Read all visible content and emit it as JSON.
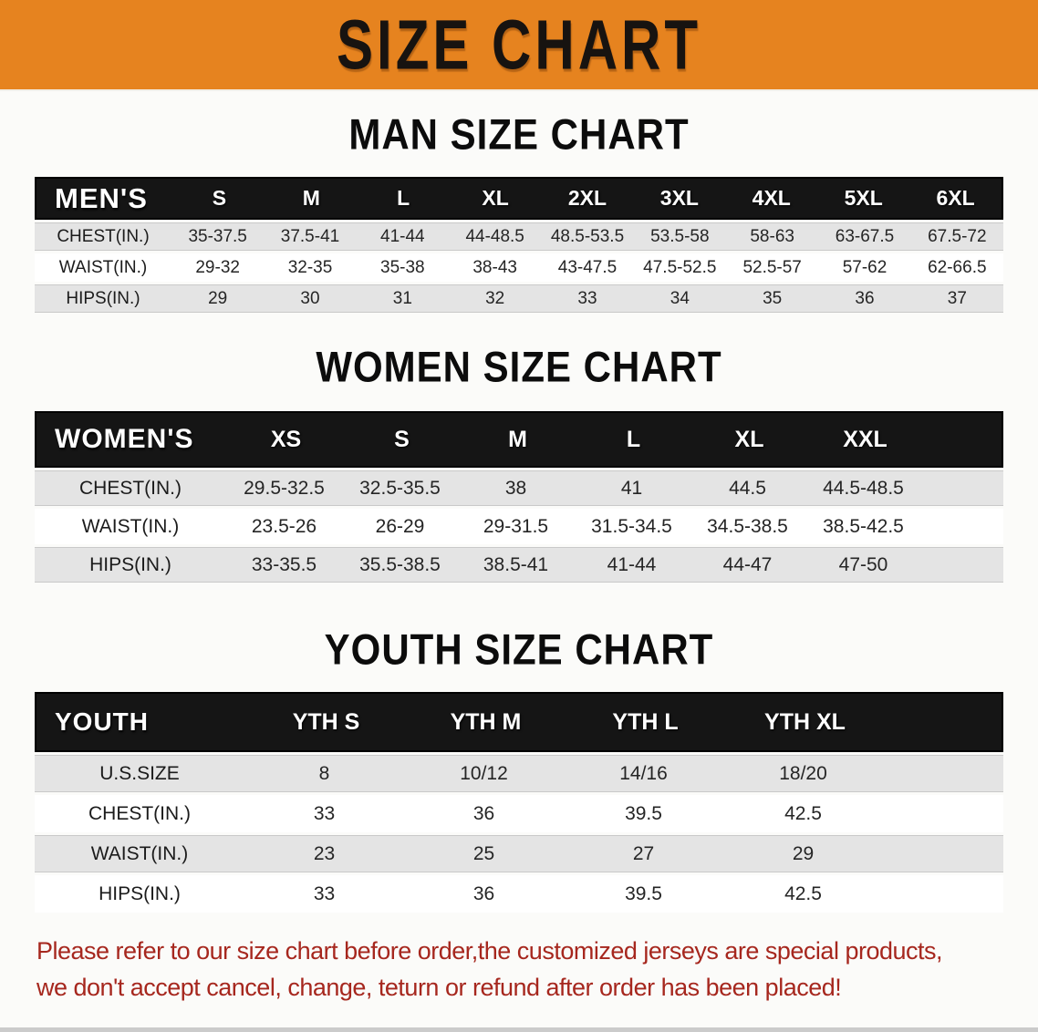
{
  "banner": {
    "title": "SIZE CHART"
  },
  "colors": {
    "banner_bg": "#e6831f",
    "table_header_bar": "#151515",
    "row_gray": "#e4e4e4",
    "disclaimer_red": "#a6271e",
    "bottom_strip_gray": "#cbcbcb"
  },
  "sections": {
    "men": {
      "heading": "MAN SIZE CHART",
      "table": {
        "group_label": "MEN'S",
        "columns": [
          "S",
          "M",
          "L",
          "XL",
          "2XL",
          "3XL",
          "4XL",
          "5XL",
          "6XL"
        ],
        "rows": [
          {
            "label": "CHEST(IN.)",
            "values": [
              "35-37.5",
              "37.5-41",
              "41-44",
              "44-48.5",
              "48.5-53.5",
              "53.5-58",
              "58-63",
              "63-67.5",
              "67.5-72"
            ]
          },
          {
            "label": "WAIST(IN.)",
            "values": [
              "29-32",
              "32-35",
              "35-38",
              "38-43",
              "43-47.5",
              "47.5-52.5",
              "52.5-57",
              "57-62",
              "62-66.5"
            ]
          },
          {
            "label": "HIPS(IN.)",
            "values": [
              "29",
              "30",
              "31",
              "32",
              "33",
              "34",
              "35",
              "36",
              "37"
            ]
          }
        ]
      }
    },
    "women": {
      "heading": "WOMEN SIZE CHART",
      "table": {
        "group_label": "WOMEN'S",
        "columns": [
          "XS",
          "S",
          "M",
          "L",
          "XL",
          "XXL"
        ],
        "rows": [
          {
            "label": "CHEST(IN.)",
            "values": [
              "29.5-32.5",
              "32.5-35.5",
              "38",
              "41",
              "44.5",
              "44.5-48.5"
            ]
          },
          {
            "label": "WAIST(IN.)",
            "values": [
              "23.5-26",
              "26-29",
              "29-31.5",
              "31.5-34.5",
              "34.5-38.5",
              "38.5-42.5"
            ]
          },
          {
            "label": "HIPS(IN.)",
            "values": [
              "33-35.5",
              "35.5-38.5",
              "38.5-41",
              "41-44",
              "44-47",
              "47-50"
            ]
          }
        ]
      }
    },
    "youth": {
      "heading": "YOUTH SIZE CHART",
      "table": {
        "group_label": "YOUTH",
        "columns": [
          "YTH S",
          "YTH M",
          "YTH L",
          "YTH XL"
        ],
        "rows": [
          {
            "label": "U.S.SIZE",
            "values": [
              "8",
              "10/12",
              "14/16",
              "18/20"
            ]
          },
          {
            "label": "CHEST(IN.)",
            "values": [
              "33",
              "36",
              "39.5",
              "42.5"
            ]
          },
          {
            "label": "WAIST(IN.)",
            "values": [
              "23",
              "25",
              "27",
              "29"
            ]
          },
          {
            "label": "HIPS(IN.)",
            "values": [
              "33",
              "36",
              "39.5",
              "42.5"
            ]
          }
        ]
      }
    }
  },
  "disclaimer": {
    "line1": "Please refer to our size chart before order,the customized jerseys are special products,",
    "line2": "we don't accept cancel, change, teturn or refund after order has been placed!"
  }
}
